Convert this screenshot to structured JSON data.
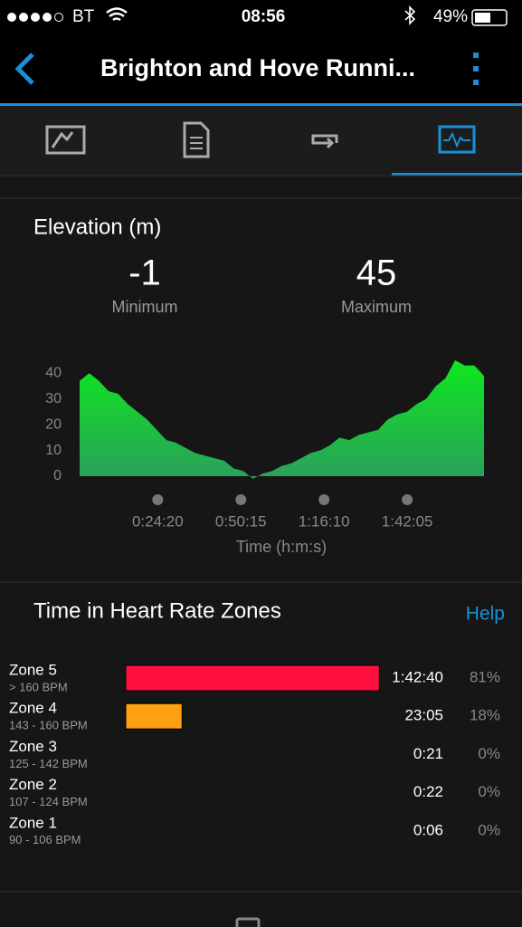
{
  "status": {
    "carrier": "BT",
    "time": "08:56",
    "battery": "49%"
  },
  "header": {
    "title": "Brighton and Hove Runni..."
  },
  "elevation": {
    "title": "Elevation (m)",
    "minimum": "-1",
    "minimum_label": "Minimum",
    "maximum": "45",
    "maximum_label": "Maximum",
    "chart": {
      "type": "area",
      "x_label": "Time (h:m:s)",
      "x": [
        0,
        180,
        360,
        540,
        720,
        900,
        1080,
        1260,
        1440,
        1620,
        1800,
        1980,
        2160,
        2340,
        2520,
        2700,
        2880,
        3060,
        3240,
        3420,
        3600,
        3780,
        3960,
        4140,
        4320,
        4500,
        4680,
        4860,
        5040,
        5220,
        5400,
        5580,
        5760,
        5940,
        6120,
        6300,
        6480,
        6660,
        6840,
        7020,
        7200,
        7380,
        7560
      ],
      "values": [
        37,
        40,
        37,
        33,
        32,
        28,
        25,
        22,
        18,
        14,
        13,
        11,
        9,
        8,
        7,
        6,
        3,
        2,
        -1,
        1,
        2,
        4,
        5,
        7,
        9,
        10,
        12,
        15,
        14,
        16,
        17,
        18,
        22,
        24,
        25,
        28,
        30,
        35,
        38,
        45,
        43,
        43,
        39
      ],
      "xlim": [
        0,
        7560
      ],
      "ylim": [
        0,
        45
      ],
      "xticks": [
        {
          "value": 1460,
          "label": "0:24:20"
        },
        {
          "value": 3015,
          "label": "0:50:15"
        },
        {
          "value": 4570,
          "label": "1:16:10"
        },
        {
          "value": 6125,
          "label": "1:42:05"
        }
      ],
      "yticks": [
        0,
        10,
        20,
        30,
        40
      ]
    }
  },
  "zones": {
    "title": "Time in Heart Rate Zones",
    "help": "Help",
    "names": [
      "Zone 5",
      "Zone 4",
      "Zone 3",
      "Zone 2",
      "Zone 1"
    ],
    "ranges": [
      "> 160 BPM",
      "143 - 160 BPM",
      "125 - 142 BPM",
      "107 - 124 BPM",
      "90 - 106 BPM"
    ],
    "times": [
      "1:42:40",
      "23:05",
      "0:21",
      "0:22",
      "0:06"
    ],
    "values": [
      81,
      18,
      0,
      0,
      0
    ],
    "value_labels": [
      "81%",
      "18%",
      "0%",
      "0%",
      "0%"
    ],
    "colors": [
      "#ff1040",
      "#ffa010",
      "#ffd000",
      "#30c030",
      "#3090e0"
    ]
  }
}
